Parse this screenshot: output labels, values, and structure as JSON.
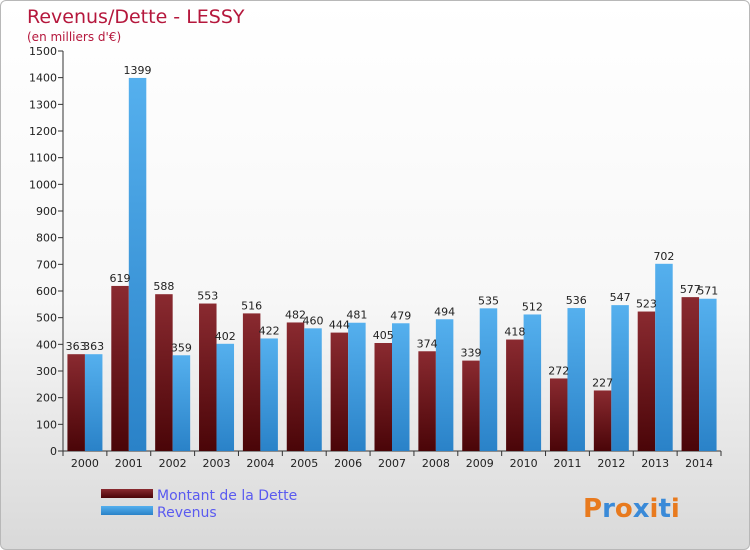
{
  "chart_data": {
    "type": "bar",
    "title": "Revenus/Dette - LESSY",
    "subtitle": "(en milliers d'€)",
    "categories": [
      "2000",
      "2001",
      "2002",
      "2003",
      "2004",
      "2005",
      "2006",
      "2007",
      "2008",
      "2009",
      "2010",
      "2011",
      "2012",
      "2013",
      "2014"
    ],
    "series": [
      {
        "name": "Montant de la Dette",
        "color": "#7a1a22",
        "values": [
          363,
          619,
          588,
          553,
          516,
          482,
          444,
          405,
          374,
          339,
          418,
          272,
          227,
          523,
          577
        ]
      },
      {
        "name": "Revenus",
        "color": "#3a9ae0",
        "values": [
          363,
          1399,
          359,
          402,
          422,
          460,
          481,
          479,
          494,
          535,
          512,
          536,
          547,
          702,
          571
        ]
      }
    ],
    "ylim": [
      0,
      1500
    ],
    "yticks": [
      0,
      100,
      200,
      300,
      400,
      500,
      600,
      700,
      800,
      900,
      1000,
      1100,
      1200,
      1300,
      1400,
      1500
    ],
    "grid": false,
    "legend_position": "bottom-left"
  },
  "logo": {
    "text": "Proxiti"
  }
}
